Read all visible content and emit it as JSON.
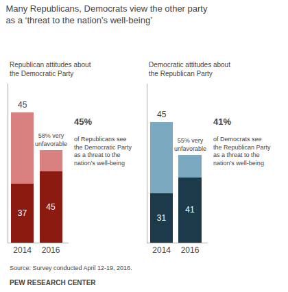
{
  "title": "Many Republicans, Democrats view the other party\nas a ‘threat to the nation’s well-being’",
  "notes": [
    "Source: Survey conducted April 12-19, 2016.",
    "PEW RESEARCH CENTER"
  ],
  "chart_data": [
    {
      "type": "bar",
      "stacked": true,
      "subtitle": "Republican attitudes about\nthe Democratic Party",
      "categories": [
        "2014",
        "2016"
      ],
      "series": [
        {
          "color": "#8B1A10",
          "values": [
            37,
            45
          ],
          "value_labels": [
            "37",
            "45"
          ]
        },
        {
          "color": "#D98080",
          "values": [
            45,
            13
          ],
          "value_labels": [
            "45",
            null
          ]
        }
      ],
      "ylim": [
        0,
        100
      ],
      "data_labels": true,
      "tick_labels": "x",
      "grid": false,
      "annotations": [
        {
          "text": "58% very\nunfavorable",
          "category": "2016"
        }
      ],
      "callout": {
        "headline": "45%",
        "text": "of Republicans see\nthe Democratic Party\nas a threat to the\nnation’s well-being"
      }
    },
    {
      "type": "bar",
      "stacked": true,
      "subtitle": "Democratic attitudes about\nthe Republican Party",
      "categories": [
        "2014",
        "2016"
      ],
      "series": [
        {
          "color": "#1C3A4A",
          "values": [
            31,
            41
          ],
          "value_labels": [
            "31",
            "41"
          ]
        },
        {
          "color": "#7BAAC0",
          "values": [
            45,
            14
          ],
          "value_labels": [
            "45",
            null
          ]
        }
      ],
      "ylim": [
        0,
        100
      ],
      "data_labels": true,
      "tick_labels": "x",
      "grid": false,
      "annotations": [
        {
          "text": "55% very\nunfavorable",
          "category": "2016"
        }
      ],
      "callout": {
        "headline": "41%",
        "text": "of Democrats see\nthe Republican Party\nas a threat to the\nnation’s well-being"
      }
    }
  ]
}
